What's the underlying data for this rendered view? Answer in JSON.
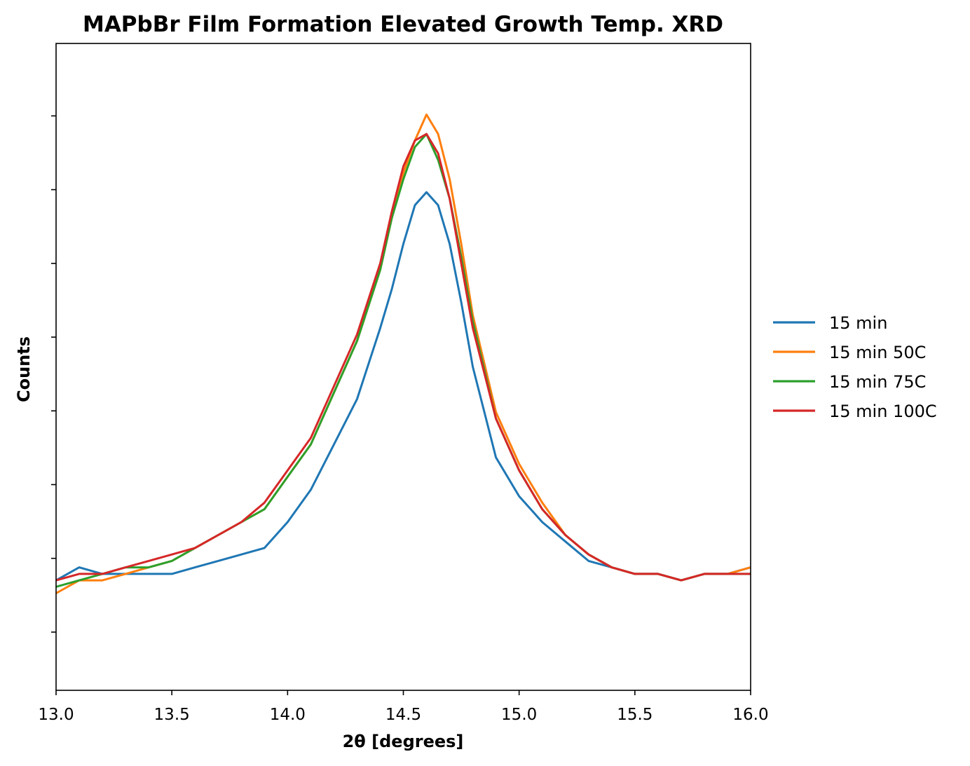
{
  "chart_data": {
    "type": "line",
    "title": "MAPbBr Film Formation Elevated Growth Temp. XRD",
    "xlabel": "2θ [degrees]",
    "ylabel": "Counts",
    "xlim": [
      13.0,
      16.0
    ],
    "ylim": [
      0,
      1.0
    ],
    "y_tick_labels_shown": false,
    "x_ticks": [
      "13.0",
      "13.5",
      "14.0",
      "14.5",
      "15.0",
      "15.5",
      "16.0"
    ],
    "legend_position": "right, outside plot",
    "grid": false,
    "peak_model": {
      "center": [
        14.58,
        14.58,
        14.58,
        14.58
      ],
      "note_values": "y values in relative counts (axis unlabeled)"
    },
    "series": [
      {
        "name": "15 min",
        "color": "#1f77b4",
        "x": [
          13.0,
          13.1,
          13.2,
          13.3,
          13.4,
          13.5,
          13.6,
          13.7,
          13.8,
          13.9,
          14.0,
          14.1,
          14.2,
          14.3,
          14.4,
          14.45,
          14.5,
          14.55,
          14.6,
          14.65,
          14.7,
          14.75,
          14.8,
          14.9,
          15.0,
          15.1,
          15.2,
          15.3,
          15.4,
          15.5,
          15.6,
          15.7,
          15.8,
          15.9,
          16.0
        ],
        "y": [
          0.17,
          0.19,
          0.18,
          0.18,
          0.18,
          0.18,
          0.19,
          0.2,
          0.21,
          0.22,
          0.26,
          0.31,
          0.38,
          0.45,
          0.56,
          0.62,
          0.69,
          0.75,
          0.77,
          0.75,
          0.69,
          0.6,
          0.5,
          0.36,
          0.3,
          0.26,
          0.23,
          0.2,
          0.19,
          0.18,
          0.18,
          0.17,
          0.18,
          0.18,
          0.19
        ]
      },
      {
        "name": "15 min 50C",
        "color": "#ff7f0e",
        "x": [
          13.0,
          13.1,
          13.2,
          13.3,
          13.4,
          13.5,
          13.6,
          13.7,
          13.8,
          13.9,
          14.0,
          14.1,
          14.2,
          14.3,
          14.4,
          14.45,
          14.5,
          14.55,
          14.6,
          14.65,
          14.7,
          14.75,
          14.8,
          14.9,
          15.0,
          15.1,
          15.2,
          15.3,
          15.4,
          15.5,
          15.6,
          15.7,
          15.8,
          15.9,
          16.0
        ],
        "y": [
          0.15,
          0.17,
          0.17,
          0.18,
          0.19,
          0.2,
          0.22,
          0.24,
          0.26,
          0.28,
          0.33,
          0.38,
          0.46,
          0.54,
          0.65,
          0.73,
          0.8,
          0.85,
          0.89,
          0.86,
          0.79,
          0.69,
          0.58,
          0.43,
          0.35,
          0.29,
          0.24,
          0.21,
          0.19,
          0.18,
          0.18,
          0.17,
          0.18,
          0.18,
          0.19
        ]
      },
      {
        "name": "15 min 75C",
        "color": "#2ca02c",
        "x": [
          13.0,
          13.1,
          13.2,
          13.3,
          13.4,
          13.5,
          13.6,
          13.7,
          13.8,
          13.9,
          14.0,
          14.1,
          14.2,
          14.3,
          14.4,
          14.45,
          14.5,
          14.55,
          14.6,
          14.65,
          14.7,
          14.75,
          14.8,
          14.9,
          15.0,
          15.1,
          15.2,
          15.3,
          15.4,
          15.5,
          15.6,
          15.7,
          15.8,
          15.9,
          16.0
        ],
        "y": [
          0.16,
          0.17,
          0.18,
          0.19,
          0.19,
          0.2,
          0.22,
          0.24,
          0.26,
          0.28,
          0.33,
          0.38,
          0.46,
          0.54,
          0.65,
          0.73,
          0.79,
          0.84,
          0.86,
          0.82,
          0.76,
          0.67,
          0.57,
          0.42,
          0.34,
          0.28,
          0.24,
          0.21,
          0.19,
          0.18,
          0.18,
          0.17,
          0.18,
          0.18,
          0.18
        ]
      },
      {
        "name": "15 min 100C",
        "color": "#d62728",
        "x": [
          13.0,
          13.1,
          13.2,
          13.3,
          13.4,
          13.5,
          13.6,
          13.7,
          13.8,
          13.9,
          14.0,
          14.1,
          14.2,
          14.3,
          14.4,
          14.45,
          14.5,
          14.55,
          14.6,
          14.65,
          14.7,
          14.75,
          14.8,
          14.9,
          15.0,
          15.1,
          15.2,
          15.3,
          15.4,
          15.5,
          15.6,
          15.7,
          15.8,
          15.9,
          16.0
        ],
        "y": [
          0.17,
          0.18,
          0.18,
          0.19,
          0.2,
          0.21,
          0.22,
          0.24,
          0.26,
          0.29,
          0.34,
          0.39,
          0.47,
          0.55,
          0.66,
          0.74,
          0.81,
          0.85,
          0.86,
          0.83,
          0.76,
          0.66,
          0.56,
          0.42,
          0.34,
          0.28,
          0.24,
          0.21,
          0.19,
          0.18,
          0.18,
          0.17,
          0.18,
          0.18,
          0.18
        ]
      }
    ]
  }
}
